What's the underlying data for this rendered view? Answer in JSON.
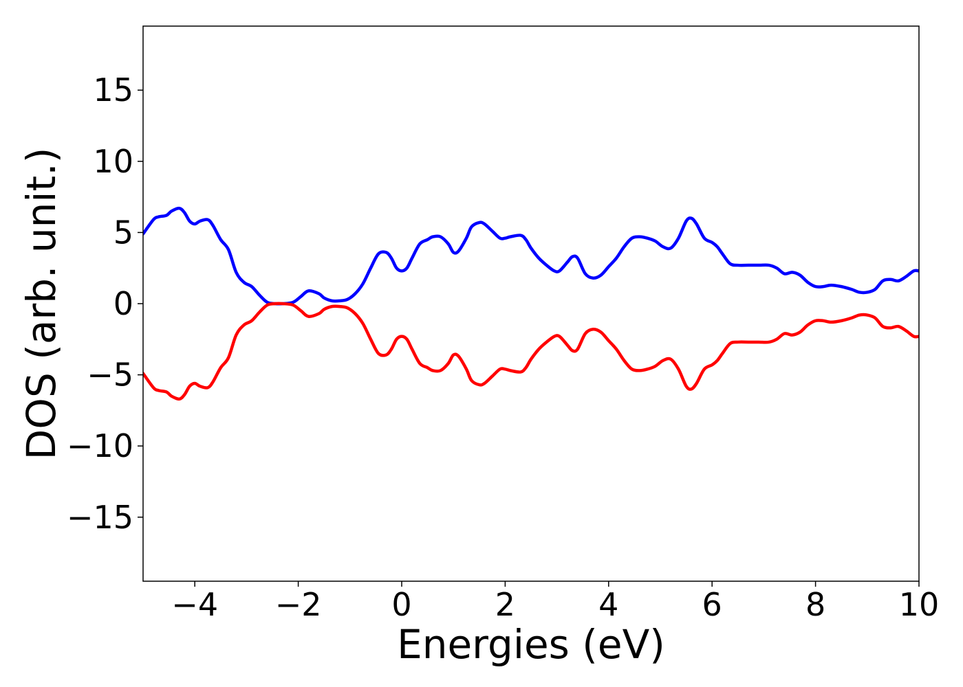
{
  "chart_data": {
    "type": "line",
    "title": "",
    "xlabel": "Energies (eV)",
    "ylabel": "DOS (arb. unit.)",
    "xlim": [
      -5,
      10
    ],
    "ylim": [
      -19.5,
      19.5
    ],
    "grid": false,
    "x_ticks": [
      -4,
      -2,
      0,
      2,
      4,
      6,
      8,
      10
    ],
    "x_tick_labels": [
      "−4",
      "−2",
      "0",
      "2",
      "4",
      "6",
      "8",
      "10"
    ],
    "y_ticks": [
      15,
      10,
      5,
      0,
      -5,
      -10,
      -15
    ],
    "y_tick_labels": [
      "15",
      "10",
      "5",
      "0",
      "−5",
      "−10",
      "−15"
    ],
    "series": [
      {
        "color": "#0000ff",
        "x": [
          -5.0,
          -4.8,
          -4.7,
          -4.55,
          -4.45,
          -4.3,
          -4.2,
          -4.1,
          -4.0,
          -3.9,
          -3.75,
          -3.65,
          -3.5,
          -3.35,
          -3.2,
          -3.05,
          -2.9,
          -2.75,
          -2.6,
          -2.45,
          -2.3,
          -2.1,
          -1.95,
          -1.8,
          -1.6,
          -1.5,
          -1.35,
          -1.2,
          -1.05,
          -0.9,
          -0.75,
          -0.6,
          -0.45,
          -0.3,
          -0.2,
          -0.1,
          0.0,
          0.1,
          0.2,
          0.35,
          0.5,
          0.6,
          0.75,
          0.9,
          1.0,
          1.1,
          1.25,
          1.35,
          1.5,
          1.6,
          1.75,
          1.9,
          2.0,
          2.1,
          2.3,
          2.4,
          2.5,
          2.65,
          2.8,
          2.95,
          3.05,
          3.2,
          3.3,
          3.4,
          3.55,
          3.7,
          3.85,
          4.0,
          4.15,
          4.3,
          4.45,
          4.6,
          4.75,
          4.9,
          5.05,
          5.2,
          5.35,
          5.5,
          5.6,
          5.7,
          5.85,
          6.0,
          6.1,
          6.2,
          6.35,
          6.5,
          6.7,
          6.9,
          7.1,
          7.25,
          7.4,
          7.55,
          7.7,
          7.85,
          8.0,
          8.15,
          8.3,
          8.5,
          8.7,
          8.85,
          9.0,
          9.15,
          9.3,
          9.45,
          9.6,
          9.75,
          9.9,
          10.0
        ],
        "y": [
          4.9,
          5.9,
          6.1,
          6.2,
          6.5,
          6.7,
          6.4,
          5.8,
          5.6,
          5.8,
          5.9,
          5.5,
          4.5,
          3.8,
          2.2,
          1.5,
          1.2,
          0.6,
          0.1,
          0.0,
          0.0,
          0.1,
          0.5,
          0.9,
          0.7,
          0.4,
          0.2,
          0.2,
          0.3,
          0.7,
          1.4,
          2.5,
          3.5,
          3.6,
          3.2,
          2.5,
          2.3,
          2.5,
          3.2,
          4.2,
          4.5,
          4.7,
          4.7,
          4.2,
          3.6,
          3.7,
          4.6,
          5.4,
          5.7,
          5.6,
          5.1,
          4.6,
          4.6,
          4.7,
          4.8,
          4.5,
          3.9,
          3.2,
          2.7,
          2.3,
          2.3,
          2.9,
          3.3,
          3.2,
          2.1,
          1.8,
          2.0,
          2.6,
          3.2,
          4.0,
          4.6,
          4.7,
          4.6,
          4.4,
          4.0,
          3.9,
          4.6,
          5.8,
          6.0,
          5.6,
          4.6,
          4.3,
          4.0,
          3.5,
          2.8,
          2.7,
          2.7,
          2.7,
          2.7,
          2.5,
          2.1,
          2.2,
          2.0,
          1.5,
          1.2,
          1.2,
          1.3,
          1.2,
          1.0,
          0.8,
          0.8,
          1.0,
          1.6,
          1.7,
          1.6,
          1.9,
          2.3,
          2.3
        ]
      },
      {
        "color": "#ff0000",
        "x": [
          -5.0,
          -4.8,
          -4.7,
          -4.55,
          -4.45,
          -4.3,
          -4.2,
          -4.1,
          -4.0,
          -3.9,
          -3.75,
          -3.65,
          -3.5,
          -3.35,
          -3.2,
          -3.05,
          -2.9,
          -2.75,
          -2.6,
          -2.45,
          -2.3,
          -2.1,
          -1.95,
          -1.8,
          -1.6,
          -1.5,
          -1.35,
          -1.2,
          -1.05,
          -0.9,
          -0.75,
          -0.6,
          -0.45,
          -0.3,
          -0.2,
          -0.1,
          0.0,
          0.1,
          0.2,
          0.35,
          0.5,
          0.6,
          0.75,
          0.9,
          1.0,
          1.1,
          1.25,
          1.35,
          1.5,
          1.6,
          1.75,
          1.9,
          2.0,
          2.1,
          2.3,
          2.4,
          2.5,
          2.65,
          2.8,
          2.95,
          3.05,
          3.2,
          3.3,
          3.4,
          3.55,
          3.7,
          3.85,
          4.0,
          4.15,
          4.3,
          4.45,
          4.6,
          4.75,
          4.9,
          5.05,
          5.2,
          5.35,
          5.5,
          5.6,
          5.7,
          5.85,
          6.0,
          6.1,
          6.2,
          6.35,
          6.5,
          6.7,
          6.9,
          7.1,
          7.25,
          7.4,
          7.55,
          7.7,
          7.85,
          8.0,
          8.15,
          8.3,
          8.5,
          8.7,
          8.85,
          9.0,
          9.15,
          9.3,
          9.45,
          9.6,
          9.75,
          9.9,
          10.0
        ],
        "y": [
          -4.9,
          -5.9,
          -6.1,
          -6.2,
          -6.5,
          -6.7,
          -6.4,
          -5.8,
          -5.6,
          -5.8,
          -5.9,
          -5.5,
          -4.5,
          -3.8,
          -2.2,
          -1.5,
          -1.2,
          -0.6,
          -0.1,
          0.0,
          0.0,
          -0.1,
          -0.5,
          -0.9,
          -0.7,
          -0.4,
          -0.2,
          -0.2,
          -0.3,
          -0.7,
          -1.4,
          -2.5,
          -3.5,
          -3.6,
          -3.2,
          -2.5,
          -2.3,
          -2.5,
          -3.2,
          -4.2,
          -4.5,
          -4.7,
          -4.7,
          -4.2,
          -3.6,
          -3.7,
          -4.6,
          -5.4,
          -5.7,
          -5.6,
          -5.1,
          -4.6,
          -4.6,
          -4.7,
          -4.8,
          -4.5,
          -3.9,
          -3.2,
          -2.7,
          -2.3,
          -2.3,
          -2.9,
          -3.3,
          -3.2,
          -2.1,
          -1.8,
          -2.0,
          -2.6,
          -3.2,
          -4.0,
          -4.6,
          -4.7,
          -4.6,
          -4.4,
          -4.0,
          -3.9,
          -4.6,
          -5.8,
          -6.0,
          -5.6,
          -4.6,
          -4.3,
          -4.0,
          -3.5,
          -2.8,
          -2.7,
          -2.7,
          -2.7,
          -2.7,
          -2.5,
          -2.1,
          -2.2,
          -2.0,
          -1.5,
          -1.2,
          -1.2,
          -1.3,
          -1.2,
          -1.0,
          -0.8,
          -0.8,
          -1.0,
          -1.6,
          -1.7,
          -1.6,
          -1.9,
          -2.3,
          -2.3
        ]
      }
    ]
  }
}
